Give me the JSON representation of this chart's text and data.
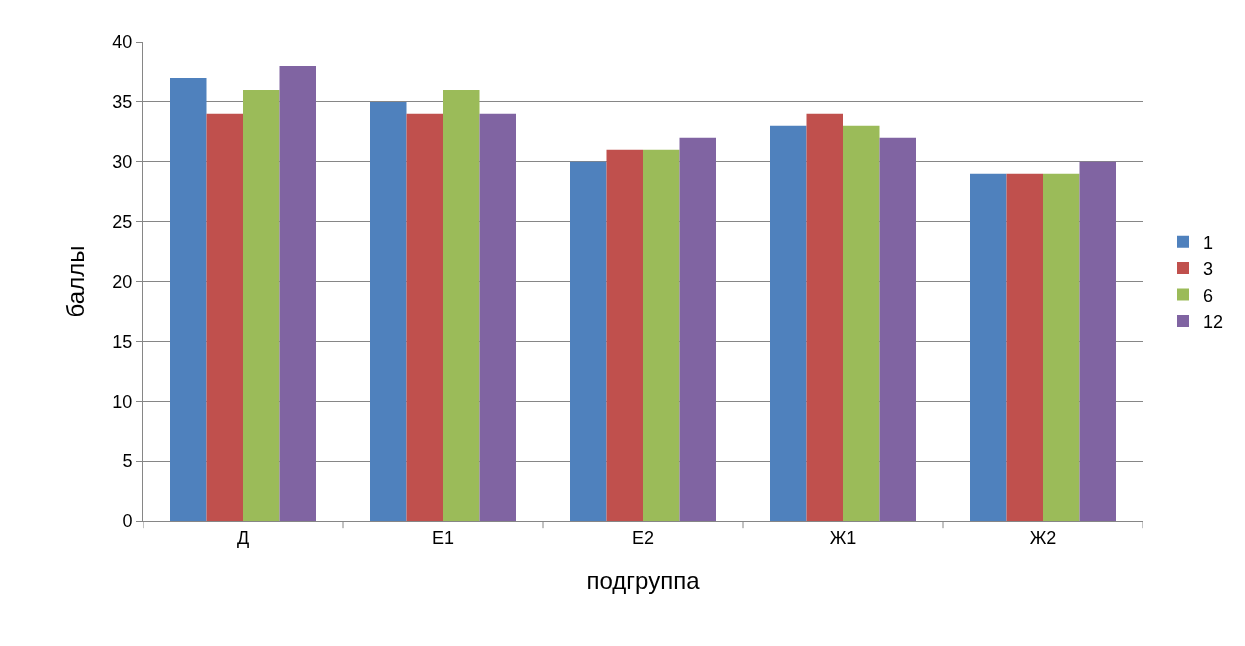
{
  "chart_data": {
    "type": "bar",
    "xlabel": "подгруппа",
    "ylabel": "баллы",
    "categories": [
      "Д",
      "Е1",
      "Е2",
      "Ж1",
      "Ж2"
    ],
    "series": [
      {
        "name": "1",
        "color": "#4f81bd",
        "values": [
          37,
          35,
          30,
          33,
          29
        ]
      },
      {
        "name": "3",
        "color": "#c0504d",
        "values": [
          34,
          34,
          31,
          34,
          29
        ]
      },
      {
        "name": "6",
        "color": "#9bbb59",
        "values": [
          36,
          36,
          31,
          33,
          29
        ]
      },
      {
        "name": "12",
        "color": "#8064a2",
        "values": [
          38,
          34,
          32,
          32,
          30
        ]
      }
    ],
    "ylim": [
      0,
      40
    ],
    "yticks": [
      0,
      5,
      10,
      15,
      20,
      25,
      30,
      35,
      40
    ],
    "grid": "y",
    "legend": "right"
  }
}
